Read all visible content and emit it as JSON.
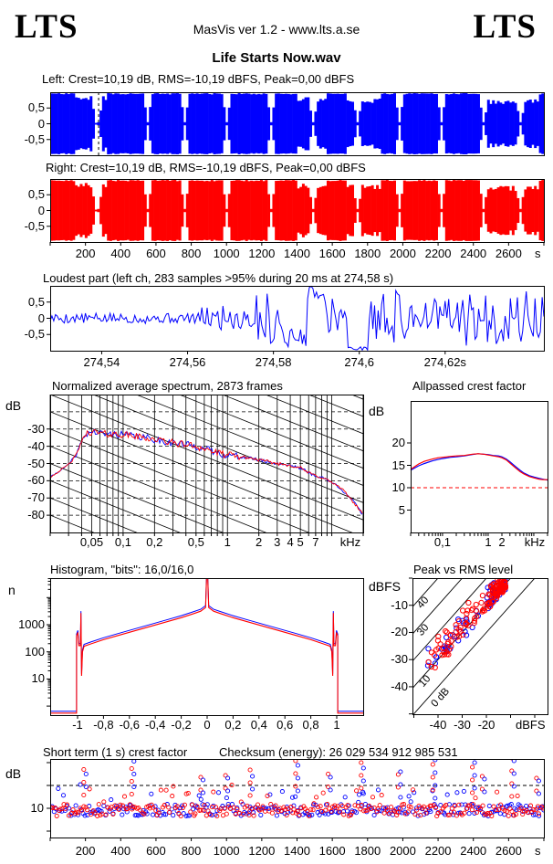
{
  "header": {
    "logo_left": "LTS",
    "logo_right": "LTS",
    "app_line": "MasVis ver 1.2 - www.lts.a.se",
    "title": "Life Starts Now.wav"
  },
  "colors": {
    "left_channel": "#0000ff",
    "right_channel": "#ff0000",
    "axis": "#000000",
    "reference_dashed": "#ff0000"
  },
  "time_axis": {
    "unit": "s",
    "range_s": [
      0,
      2800
    ],
    "ticks": [
      {
        "t": "200",
        "v": 200
      },
      {
        "t": "400",
        "v": 400
      },
      {
        "t": "600",
        "v": 600
      },
      {
        "t": "800",
        "v": 800
      },
      {
        "t": "1000",
        "v": 1000
      },
      {
        "t": "1200",
        "v": 1200
      },
      {
        "t": "1400",
        "v": 1400
      },
      {
        "t": "1600",
        "v": 1600
      },
      {
        "t": "1800",
        "v": 1800
      },
      {
        "t": "2000",
        "v": 2000
      },
      {
        "t": "2200",
        "v": 2200
      },
      {
        "t": "2400",
        "v": 2400
      },
      {
        "t": "2600",
        "v": 2600
      }
    ]
  },
  "chart_data": [
    {
      "id": "left_waveform",
      "type": "waveform",
      "title": "Left: Crest=10,19 dB, RMS=-10,19 dBFS, Peak=0,00 dBFS",
      "channel": "left",
      "color": "#0000ff",
      "ylim": [
        -1,
        1
      ],
      "yticks": [
        {
          "t": "0,5",
          "v": 0.5
        },
        {
          "t": "0",
          "v": 0
        },
        {
          "t": "-0,5",
          "v": -0.5
        }
      ],
      "marker_time_s": 274.58,
      "seed": 11,
      "envelope": {
        "base": 0.97,
        "dips": [
          0.089,
          0.094,
          0.194,
          0.272,
          0.355,
          0.447,
          0.532,
          0.619,
          0.704,
          0.789,
          0.874,
          0.952
        ],
        "quiet": [
          [
            0.05,
            0.115,
            0.88
          ],
          [
            0.5,
            0.56,
            0.85
          ],
          [
            0.6,
            0.67,
            0.82
          ],
          [
            0.875,
            0.99,
            0.78
          ]
        ]
      }
    },
    {
      "id": "right_waveform",
      "type": "waveform",
      "title": "Right: Crest=10,19 dB, RMS=-10,19 dBFS, Peak=0,00 dBFS",
      "channel": "right",
      "color": "#ff0000",
      "ylim": [
        -1,
        1
      ],
      "yticks": [
        {
          "t": "0,5",
          "v": 0.5
        },
        {
          "t": "0",
          "v": 0
        },
        {
          "t": "-0,5",
          "v": -0.5
        }
      ],
      "marker_time_s": null,
      "seed": 23,
      "envelope": {
        "base": 0.97,
        "dips": [
          0.089,
          0.094,
          0.194,
          0.272,
          0.355,
          0.447,
          0.532,
          0.619,
          0.704,
          0.789,
          0.874,
          0.952
        ],
        "quiet": [
          [
            0.05,
            0.115,
            0.88
          ],
          [
            0.5,
            0.56,
            0.85
          ],
          [
            0.6,
            0.67,
            0.82
          ],
          [
            0.875,
            0.99,
            0.78
          ]
        ]
      }
    },
    {
      "id": "loudest",
      "type": "line",
      "title": "Loudest part (left  ch, 283 samples >95% during 20 ms at 274,58 s)",
      "color": "#0000ff",
      "ylim": [
        -1,
        1
      ],
      "xlim_s": [
        274.528,
        274.643
      ],
      "seed": 5,
      "yticks": [
        {
          "t": "0,5",
          "v": 0.5
        },
        {
          "t": "0",
          "v": 0
        },
        {
          "t": "-0,5",
          "v": -0.5
        }
      ],
      "xticks": [
        {
          "t": "274,54",
          "v": 274.54
        },
        {
          "t": "274,56",
          "v": 274.56
        },
        {
          "t": "274,58",
          "v": 274.58
        },
        {
          "t": "274,6",
          "v": 274.6
        },
        {
          "t": "274,62s",
          "v": 274.62
        }
      ],
      "segments": [
        [
          0,
          0.3,
          0.16,
          0
        ],
        [
          0.3,
          0.34,
          0.32,
          0.02
        ],
        [
          0.34,
          0.415,
          0.5,
          0.05
        ],
        [
          0.415,
          0.47,
          0.9,
          -0.02
        ],
        [
          0.47,
          0.52,
          0.3,
          -0.6
        ],
        [
          0.52,
          0.555,
          0.22,
          0.82
        ],
        [
          0.555,
          0.6,
          0.55,
          0.1
        ],
        [
          0.6,
          0.645,
          0.05,
          -0.93
        ],
        [
          0.645,
          0.735,
          0.92,
          0
        ],
        [
          0.735,
          0.8,
          0.55,
          0.1
        ],
        [
          0.8,
          0.9,
          0.8,
          -0.05
        ],
        [
          0.9,
          1.0,
          0.85,
          0
        ]
      ]
    },
    {
      "id": "spectrum",
      "type": "line",
      "title": "Normalized average spectrum, 2873 frames",
      "ylabel": "dB",
      "xunit": "kHz",
      "ylim": [
        -88,
        -10
      ],
      "flim_khz": [
        0.02,
        20
      ],
      "grid": "log-x, dashed 10 dB horizontals, diagonal tilt guides",
      "yticks": [
        {
          "t": "-30",
          "v": -30
        },
        {
          "t": "-40",
          "v": -40
        },
        {
          "t": "-50",
          "v": -50
        },
        {
          "t": "-60",
          "v": -60
        },
        {
          "t": "-70",
          "v": -70
        },
        {
          "t": "-80",
          "v": -80
        }
      ],
      "xticks": [
        {
          "t": "0,05",
          "v": 0.05
        },
        {
          "t": "0,1",
          "v": 0.1
        },
        {
          "t": "0,2",
          "v": 0.2
        },
        {
          "t": "0,5",
          "v": 0.5
        },
        {
          "t": "1",
          "v": 1
        },
        {
          "t": "2",
          "v": 2
        },
        {
          "t": "3",
          "v": 3
        },
        {
          "t": "4",
          "v": 4
        },
        {
          "t": "5",
          "v": 5
        },
        {
          "t": "7",
          "v": 7
        }
      ],
      "seed_blue": 41,
      "seed_red": 42,
      "base_points_khz_db": [
        [
          0.02,
          -58
        ],
        [
          0.025,
          -54
        ],
        [
          0.03,
          -50.5
        ],
        [
          0.035,
          -46
        ],
        [
          0.04,
          -37
        ],
        [
          0.045,
          -32.5
        ],
        [
          0.05,
          -31.5
        ],
        [
          0.06,
          -32.5
        ],
        [
          0.07,
          -33
        ],
        [
          0.09,
          -33
        ],
        [
          0.11,
          -33.5
        ],
        [
          0.14,
          -34.5
        ],
        [
          0.18,
          -35.5
        ],
        [
          0.22,
          -36.5
        ],
        [
          0.3,
          -38
        ],
        [
          0.4,
          -39
        ],
        [
          0.5,
          -40
        ],
        [
          0.65,
          -42
        ],
        [
          0.8,
          -44
        ],
        [
          1,
          -45
        ],
        [
          1.3,
          -46
        ],
        [
          1.7,
          -47
        ],
        [
          2.2,
          -48.5
        ],
        [
          3,
          -50
        ],
        [
          4,
          -51
        ],
        [
          5,
          -52.5
        ],
        [
          6,
          -55.5
        ],
        [
          7,
          -57
        ],
        [
          8,
          -58
        ],
        [
          9,
          -59.5
        ],
        [
          10,
          -61
        ],
        [
          12,
          -64
        ],
        [
          14,
          -68
        ],
        [
          16,
          -72
        ],
        [
          18,
          -76
        ],
        [
          20,
          -80
        ]
      ]
    },
    {
      "id": "allpassed",
      "type": "line",
      "title": "Allpassed crest factor",
      "ylabel": "dB",
      "xunit": "kHz",
      "flim_khz": [
        0.02,
        20
      ],
      "reference_db": 10,
      "yticks": [
        {
          "t": "20",
          "v": 20
        },
        {
          "t": "15",
          "v": 15
        },
        {
          "t": "10",
          "v": 10
        },
        {
          "t": "5",
          "v": 5
        }
      ],
      "xticks": [
        {
          "t": "0,1",
          "v": 0.1
        },
        {
          "t": "1",
          "v": 1
        },
        {
          "t": "2",
          "v": 2
        }
      ],
      "series": [
        {
          "name": "left",
          "color": "#0000ff",
          "points": [
            [
              0.02,
              13.9
            ],
            [
              0.03,
              14.9
            ],
            [
              0.04,
              15.4
            ],
            [
              0.06,
              16.0
            ],
            [
              0.08,
              16.3
            ],
            [
              0.1,
              16.5
            ],
            [
              0.15,
              16.8
            ],
            [
              0.2,
              16.9
            ],
            [
              0.3,
              17.1
            ],
            [
              0.45,
              17.4
            ],
            [
              0.6,
              17.6
            ],
            [
              0.8,
              17.5
            ],
            [
              1,
              17.4
            ],
            [
              1.3,
              17.2
            ],
            [
              1.7,
              17.1
            ],
            [
              2,
              16.9
            ],
            [
              2.5,
              16.4
            ],
            [
              3,
              15.8
            ],
            [
              4,
              14.7
            ],
            [
              5,
              13.9
            ],
            [
              6,
              13.3
            ],
            [
              8,
              12.7
            ],
            [
              10,
              12.4
            ],
            [
              13,
              12.1
            ],
            [
              16,
              11.9
            ],
            [
              20,
              11.7
            ]
          ]
        },
        {
          "name": "right",
          "color": "#ff0000",
          "points": [
            [
              0.02,
              14.1
            ],
            [
              0.03,
              15.3
            ],
            [
              0.04,
              15.9
            ],
            [
              0.06,
              16.4
            ],
            [
              0.08,
              16.7
            ],
            [
              0.1,
              16.8
            ],
            [
              0.15,
              17.0
            ],
            [
              0.2,
              17.1
            ],
            [
              0.3,
              17.2
            ],
            [
              0.45,
              17.5
            ],
            [
              0.6,
              17.6
            ],
            [
              0.8,
              17.5
            ],
            [
              1,
              17.3
            ],
            [
              1.3,
              17.1
            ],
            [
              1.7,
              16.9
            ],
            [
              2,
              16.7
            ],
            [
              2.5,
              16.2
            ],
            [
              3,
              15.5
            ],
            [
              4,
              14.4
            ],
            [
              5,
              13.6
            ],
            [
              6,
              13.1
            ],
            [
              8,
              12.5
            ],
            [
              10,
              12.2
            ],
            [
              13,
              11.9
            ],
            [
              16,
              11.8
            ],
            [
              20,
              11.8
            ]
          ]
        }
      ]
    },
    {
      "id": "histogram",
      "type": "line-log",
      "title": "Histogram, \"bits\": 16,0/16,0",
      "ylabel": "n",
      "xlim": [
        -1.21,
        1.21
      ],
      "yticks": [
        {
          "t": "1000",
          "v": 1000
        },
        {
          "t": "100",
          "v": 100
        },
        {
          "t": "10",
          "v": 10
        }
      ],
      "xticks": [
        {
          "t": "-1",
          "v": -1
        },
        {
          "t": "-0,8",
          "v": -0.8
        },
        {
          "t": "-0,6",
          "v": -0.6
        },
        {
          "t": "-0,4",
          "v": -0.4
        },
        {
          "t": "-0,2",
          "v": -0.2
        },
        {
          "t": "0",
          "v": 0
        },
        {
          "t": "0,2",
          "v": 0.2
        },
        {
          "t": "0,4",
          "v": 0.4
        },
        {
          "t": "0,6",
          "v": 0.6
        },
        {
          "t": "0,8",
          "v": 0.8
        },
        {
          "t": "1",
          "v": 1
        }
      ],
      "points_x_n": [
        [
          -1.21,
          0.55
        ],
        [
          -1.008,
          0.55
        ],
        [
          -1.008,
          380
        ],
        [
          -0.998,
          520
        ],
        [
          -0.99,
          170
        ],
        [
          -0.978,
          170
        ],
        [
          -0.974,
          2700
        ],
        [
          -0.969,
          13
        ],
        [
          -0.962,
          100
        ],
        [
          -0.95,
          160
        ],
        [
          -0.9,
          195
        ],
        [
          -0.8,
          280
        ],
        [
          -0.7,
          385
        ],
        [
          -0.6,
          525
        ],
        [
          -0.5,
          715
        ],
        [
          -0.4,
          975
        ],
        [
          -0.3,
          1330
        ],
        [
          -0.2,
          1820
        ],
        [
          -0.1,
          2600
        ],
        [
          -0.05,
          3150
        ],
        [
          -0.012,
          4300
        ],
        [
          -0.004,
          60000
        ],
        [
          0.004,
          60000
        ],
        [
          0.012,
          4300
        ],
        [
          0.05,
          3150
        ],
        [
          0.1,
          2600
        ],
        [
          0.2,
          1820
        ],
        [
          0.3,
          1330
        ],
        [
          0.4,
          975
        ],
        [
          0.5,
          715
        ],
        [
          0.6,
          525
        ],
        [
          0.7,
          385
        ],
        [
          0.8,
          280
        ],
        [
          0.9,
          195
        ],
        [
          0.95,
          160
        ],
        [
          0.962,
          100
        ],
        [
          0.969,
          13
        ],
        [
          0.974,
          2700
        ],
        [
          0.978,
          170
        ],
        [
          0.99,
          170
        ],
        [
          0.998,
          520
        ],
        [
          1.008,
          380
        ],
        [
          1.008,
          0.55
        ],
        [
          1.21,
          0.55
        ]
      ]
    },
    {
      "id": "peak_rms",
      "type": "scatter",
      "title": "Peak vs RMS level",
      "ylabel": "dBFS",
      "xunit": "dBFS",
      "xlim": [
        -50.6,
        5.4
      ],
      "ylim": [
        -50.1,
        0
      ],
      "yticks": [
        {
          "t": "-10",
          "v": -10
        },
        {
          "t": "-20",
          "v": -20
        },
        {
          "t": "-30",
          "v": -30
        },
        {
          "t": "-40",
          "v": -40
        }
      ],
      "xticks": [
        {
          "t": "-40",
          "v": -40
        },
        {
          "t": "-30",
          "v": -30
        },
        {
          "t": "-20",
          "v": -20
        }
      ],
      "crest_lines_db": [
        0,
        10,
        20,
        30,
        40,
        50
      ],
      "diagonal_labels": [
        "40",
        "30",
        "10",
        "0 dB"
      ],
      "scatter": {
        "red_count": 140,
        "blue_count": 70,
        "seed_red": 7,
        "seed_blue": 19,
        "rms_range_dbfs": [
          -46,
          -12
        ],
        "crest_range_db": [
          8,
          16
        ]
      }
    },
    {
      "id": "short_term",
      "type": "scatter",
      "title": "Short term (1 s) crest factor",
      "checksum": "Checksum (energy):  26 029 534 912 985 531",
      "ylabel": "dB",
      "dashed_reference_db": 15,
      "ylim": [
        3.6,
        20.8
      ],
      "yticks": [
        {
          "t": "10",
          "v": 10
        }
      ],
      "unit": "s",
      "gen": {
        "per_channel": 270,
        "seed_red": 71,
        "seed_blue": 72,
        "base_db": 8.3,
        "spread_db": 2.6
      },
      "spikes": [
        [
          0.068,
          18.5,
          17.5
        ],
        [
          0.165,
          21.5,
          20.3
        ],
        [
          0.305,
          16.8,
          16.2
        ],
        [
          0.355,
          17.2,
          16.6
        ],
        [
          0.405,
          18.4,
          17.0
        ],
        [
          0.497,
          26,
          25
        ],
        [
          0.563,
          17.5,
          16.8
        ],
        [
          0.63,
          20,
          18.8
        ],
        [
          0.705,
          17.4,
          18.0
        ],
        [
          0.775,
          19.6,
          20.6
        ],
        [
          0.855,
          19.0,
          20.0
        ],
        [
          0.875,
          17.0,
          16.4
        ],
        [
          0.935,
          21.0,
          20.4
        ],
        [
          0.985,
          16.6,
          16.0
        ]
      ]
    }
  ]
}
